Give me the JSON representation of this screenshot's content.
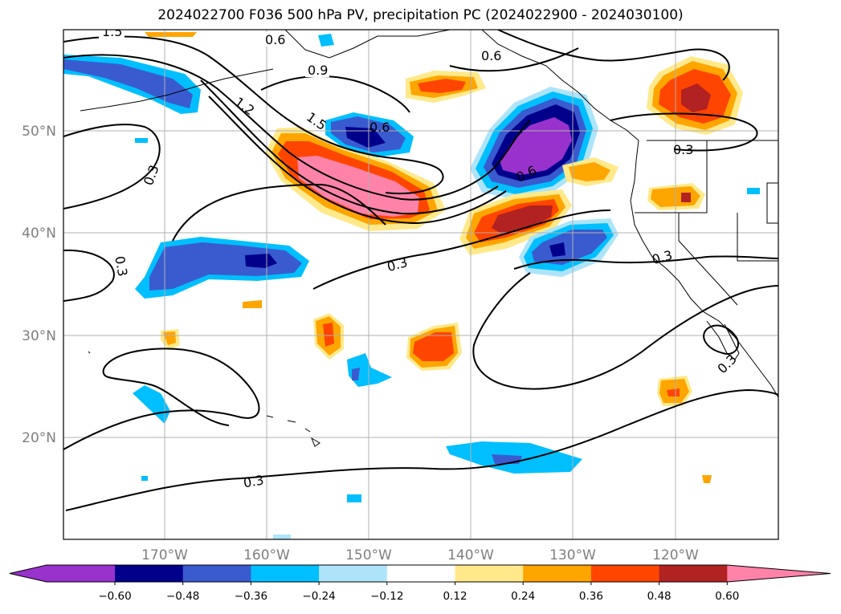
{
  "title": "2024022700 F036 500 hPa PV, precipitation PC (2024022900 - 2024030100)",
  "map": {
    "lon_labels": [
      "170°W",
      "160°W",
      "150°W",
      "140°W",
      "130°W",
      "120°W"
    ],
    "lat_labels": [
      "50°N",
      "40°N",
      "30°N",
      "20°N"
    ],
    "contour_labels": [
      "1.5",
      "0.6",
      "0.9",
      "0.6",
      "1.2",
      "1.5",
      "0.6",
      "0.6",
      "0.3",
      "0.3",
      "0.3",
      "0.3",
      "0.3",
      "0.3",
      "0.3"
    ]
  },
  "colorbar": {
    "tick_labels": [
      "−0.60",
      "−0.48",
      "−0.36",
      "−0.24",
      "−0.12",
      "0.12",
      "0.24",
      "0.36",
      "0.48",
      "0.60"
    ],
    "colors": [
      "#9932cc",
      "#00008b",
      "#3a5bcf",
      "#00bfff",
      "#ade4fa",
      "#ffffff",
      "#ffe98a",
      "#ffa500",
      "#ff4500",
      "#b22222",
      "#ff82a9"
    ]
  },
  "legend_colors": {
    "land_border": "#000000",
    "grid": "#b0b0b0",
    "contour": "#000000"
  }
}
